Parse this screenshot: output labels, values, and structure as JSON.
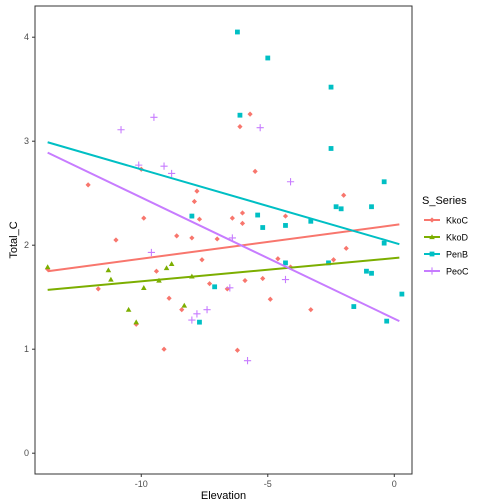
{
  "chart_data": {
    "type": "scatter",
    "title": "",
    "xlabel": "Elevation",
    "ylabel": "Total_C",
    "xlim": [
      -14.2,
      0.7
    ],
    "ylim": [
      -0.2,
      4.3
    ],
    "x_ticks": [
      -10,
      -5,
      0
    ],
    "x_tick_labels": [
      "-10",
      "-5",
      "0"
    ],
    "y_ticks": [
      0,
      1,
      2,
      3,
      4
    ],
    "y_tick_labels": [
      "0",
      "1",
      "2",
      "3",
      "4"
    ],
    "grid": false,
    "legend": {
      "title": "S_Series",
      "position": "right"
    },
    "series": [
      {
        "name": "KkoC",
        "color": "#F8766D",
        "marker": "diamond",
        "trend": {
          "x": [
            -13.7,
            0.2
          ],
          "y": [
            1.75,
            2.2
          ]
        },
        "points": [
          [
            -13.7,
            1.77
          ],
          [
            -12.1,
            2.58
          ],
          [
            -11.7,
            1.58
          ],
          [
            -10.2,
            1.24
          ],
          [
            -9.9,
            2.26
          ],
          [
            -9.4,
            1.75
          ],
          [
            -8.9,
            1.49
          ],
          [
            -8.4,
            1.38
          ],
          [
            -8.0,
            2.28
          ],
          [
            -7.9,
            2.42
          ],
          [
            -7.8,
            2.52
          ],
          [
            -7.7,
            2.25
          ],
          [
            -7.6,
            1.86
          ],
          [
            -7.3,
            1.63
          ],
          [
            -7.0,
            2.06
          ],
          [
            -6.6,
            1.58
          ],
          [
            -6.4,
            2.26
          ],
          [
            -6.2,
            0.99
          ],
          [
            -6.1,
            3.14
          ],
          [
            -6.0,
            2.31
          ],
          [
            -5.9,
            1.66
          ],
          [
            -5.7,
            3.26
          ],
          [
            -5.5,
            2.71
          ],
          [
            -5.2,
            1.68
          ],
          [
            -4.9,
            1.48
          ],
          [
            -4.6,
            1.87
          ],
          [
            -4.3,
            2.28
          ],
          [
            -4.1,
            1.79
          ],
          [
            -3.3,
            1.38
          ],
          [
            -2.4,
            1.86
          ],
          [
            -2.0,
            2.48
          ],
          [
            -1.9,
            1.97
          ],
          [
            -10.0,
            2.73
          ],
          [
            -8.0,
            2.07
          ],
          [
            -9.1,
            1.0
          ],
          [
            -8.6,
            2.09
          ],
          [
            -6.0,
            2.21
          ],
          [
            -11.0,
            2.05
          ]
        ]
      },
      {
        "name": "KkoD",
        "color": "#7CAE00",
        "marker": "triangle",
        "trend": {
          "x": [
            -13.7,
            0.2
          ],
          "y": [
            1.57,
            1.88
          ]
        },
        "points": [
          [
            -13.7,
            1.79
          ],
          [
            -11.3,
            1.76
          ],
          [
            -11.2,
            1.67
          ],
          [
            -10.5,
            1.38
          ],
          [
            -10.2,
            1.26
          ],
          [
            -9.9,
            1.59
          ],
          [
            -9.3,
            1.66
          ],
          [
            -9.0,
            1.78
          ],
          [
            -8.8,
            1.82
          ],
          [
            -8.3,
            1.42
          ],
          [
            -8.0,
            1.7
          ]
        ]
      },
      {
        "name": "PenB",
        "color": "#00BFC4",
        "marker": "square",
        "trend": {
          "x": [
            -13.7,
            0.2
          ],
          "y": [
            2.99,
            2.01
          ]
        },
        "points": [
          [
            -6.2,
            4.05
          ],
          [
            -5.0,
            3.8
          ],
          [
            -2.5,
            3.52
          ],
          [
            -6.1,
            3.25
          ],
          [
            -2.5,
            2.93
          ],
          [
            -0.4,
            2.61
          ],
          [
            -8.0,
            2.28
          ],
          [
            -5.4,
            2.29
          ],
          [
            -4.3,
            2.19
          ],
          [
            -3.3,
            2.23
          ],
          [
            -2.3,
            2.37
          ],
          [
            -2.1,
            2.35
          ],
          [
            -0.9,
            2.37
          ],
          [
            -5.2,
            2.17
          ],
          [
            -2.6,
            1.83
          ],
          [
            -1.6,
            1.41
          ],
          [
            -1.1,
            1.75
          ],
          [
            -0.9,
            1.73
          ],
          [
            -0.3,
            1.27
          ],
          [
            0.3,
            1.53
          ],
          [
            -7.7,
            1.26
          ],
          [
            -7.1,
            1.6
          ],
          [
            -4.3,
            1.83
          ],
          [
            -0.4,
            2.02
          ]
        ]
      },
      {
        "name": "PeoC",
        "color": "#C77CFF",
        "marker": "plus",
        "trend": {
          "x": [
            -13.7,
            0.2
          ],
          "y": [
            2.89,
            1.27
          ]
        },
        "points": [
          [
            -10.8,
            3.11
          ],
          [
            -9.5,
            3.23
          ],
          [
            -9.1,
            2.76
          ],
          [
            -8.8,
            2.69
          ],
          [
            -5.3,
            3.13
          ],
          [
            -4.1,
            2.61
          ],
          [
            -10.1,
            2.77
          ],
          [
            -6.4,
            2.07
          ],
          [
            -6.5,
            1.59
          ],
          [
            -7.4,
            1.38
          ],
          [
            -7.8,
            1.34
          ],
          [
            -8.0,
            1.28
          ],
          [
            -5.8,
            0.89
          ],
          [
            -4.3,
            1.67
          ],
          [
            -9.6,
            1.93
          ]
        ]
      }
    ]
  }
}
